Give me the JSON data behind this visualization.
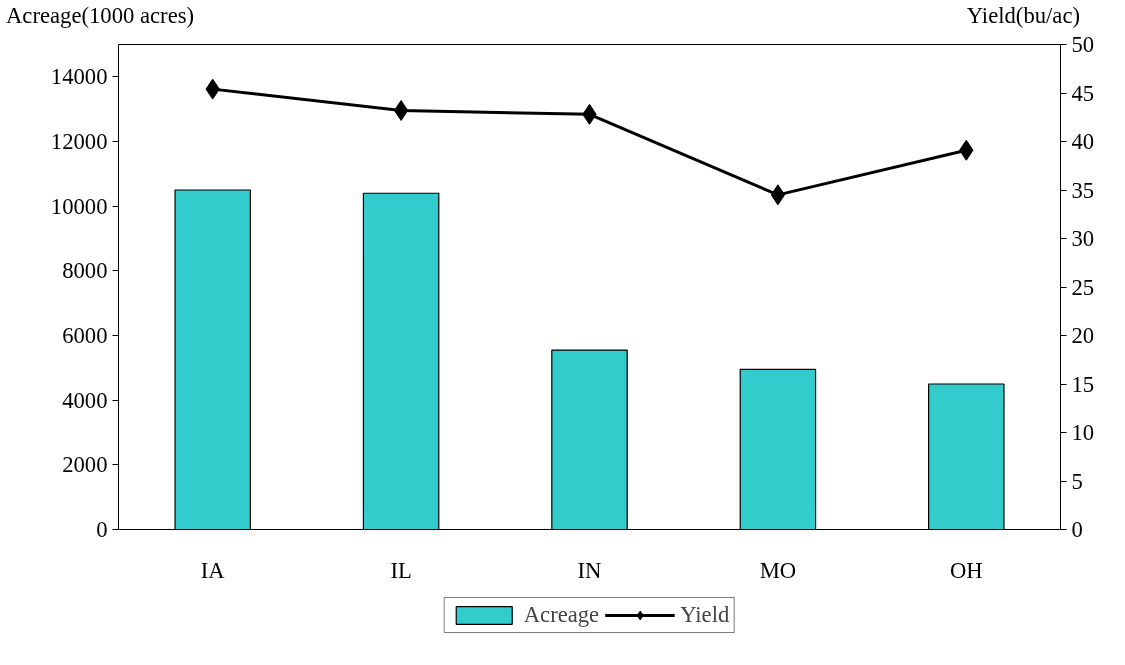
{
  "chart_data": {
    "type": "bar",
    "categories": [
      "IA",
      "IL",
      "IN",
      "MO",
      "OH"
    ],
    "ylabel": "Acreage(1000 acres)",
    "y2label": "Yield(bu/ac)",
    "series": [
      {
        "name": "Acreage",
        "color": "#33cccc",
        "values": [
          10500,
          10400,
          5550,
          4950,
          4500
        ]
      },
      {
        "name": "Yield",
        "type": "line",
        "axis": "y2",
        "color": "#000000",
        "marker": "diamond",
        "values": [
          45.4,
          43.2,
          42.8,
          34.5,
          39.1
        ]
      }
    ],
    "ylim": [
      0,
      15000
    ],
    "yticks": [
      0,
      2000,
      4000,
      6000,
      8000,
      10000,
      12000,
      14000
    ],
    "y2lim": [
      0,
      50
    ],
    "y2ticks": [
      0,
      5,
      10,
      15,
      20,
      25,
      30,
      35,
      40,
      45,
      50
    ],
    "grid": false,
    "legend": "bottom"
  }
}
